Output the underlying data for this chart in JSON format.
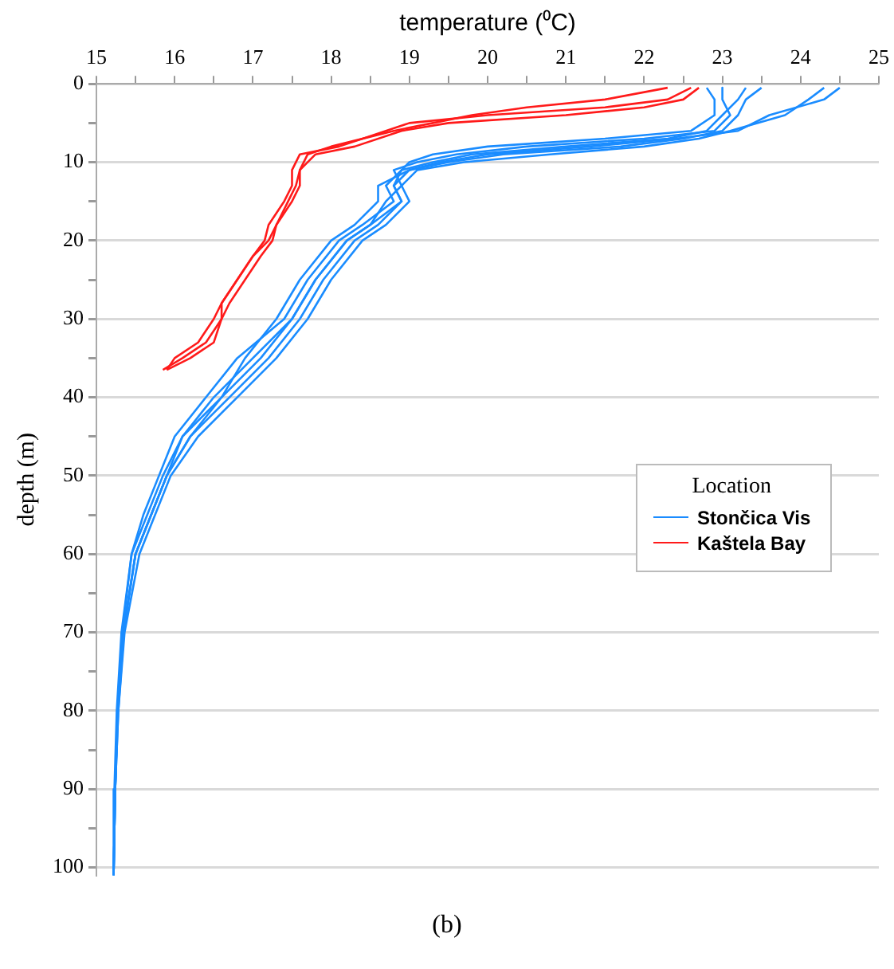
{
  "chart_data": {
    "type": "line",
    "xlabel": "temperature (⁰C)",
    "ylabel": "depth (m)",
    "legend_title": "Location",
    "legend": "right",
    "grid": "y",
    "marker": "none",
    "annotations": [
      "(b)"
    ],
    "xlim": [
      15,
      25
    ],
    "xticks": [
      15,
      {
        "value": 15.5,
        "label": null
      },
      16,
      {
        "value": 16.5,
        "label": null
      },
      17,
      {
        "value": 17.5,
        "label": null
      },
      18,
      {
        "value": 18.5,
        "label": null
      },
      19,
      {
        "value": 19.5,
        "label": null
      },
      20,
      {
        "value": 20.5,
        "label": null
      },
      21,
      {
        "value": 21.5,
        "label": null
      },
      22,
      {
        "value": 22.5,
        "label": null
      },
      23,
      {
        "value": 23.5,
        "label": null
      },
      24,
      {
        "value": 24.5,
        "label": null
      },
      25
    ],
    "ylim": [
      101,
      0
    ],
    "yticks": [
      0,
      {
        "value": 5,
        "label": null
      },
      10,
      {
        "value": 15,
        "label": null
      },
      20,
      {
        "value": 25,
        "label": null
      },
      30,
      {
        "value": 35,
        "label": null
      },
      40,
      {
        "value": 45,
        "label": null
      },
      50,
      {
        "value": 55,
        "label": null
      },
      60,
      {
        "value": 65,
        "label": null
      },
      70,
      {
        "value": 75,
        "label": null
      },
      80,
      {
        "value": 85,
        "label": null
      },
      90,
      {
        "value": 95,
        "label": null
      },
      100
    ],
    "series": [
      {
        "name": "Stončica Vis",
        "color": "#1a8cff",
        "x": [
          22.8,
          22.9,
          22.9,
          22.6,
          21.5,
          20.0,
          19.3,
          19.0,
          18.9,
          18.8,
          18.9,
          18.6,
          18.3,
          17.9,
          17.6,
          17.2,
          16.7,
          16.2,
          15.9,
          15.7,
          15.5,
          15.35,
          15.28,
          15.24,
          15.22
        ],
        "values": [
          0.5,
          2,
          4,
          6,
          7,
          8,
          9,
          10,
          11,
          13,
          15,
          18,
          20,
          25,
          30,
          35,
          40,
          45,
          50,
          55,
          60,
          70,
          80,
          90,
          101
        ]
      },
      {
        "color": "#1a8cff",
        "x": [
          23.0,
          23.0,
          23.1,
          22.9,
          22.0,
          20.5,
          19.6,
          19.1,
          18.8,
          18.9,
          18.7,
          18.5,
          18.2,
          17.8,
          17.5,
          17.0,
          16.5,
          16.1,
          15.85,
          15.65,
          15.45,
          15.33,
          15.27,
          15.24,
          15.22
        ],
        "values": [
          0.5,
          2,
          4,
          6,
          7,
          8,
          9,
          10,
          11,
          13,
          15,
          18,
          20,
          25,
          30,
          35,
          40,
          45,
          50,
          55,
          60,
          70,
          80,
          90,
          101
        ]
      },
      {
        "color": "#1a8cff",
        "x": [
          23.3,
          23.2,
          23.0,
          22.8,
          22.3,
          21.0,
          19.8,
          19.3,
          18.9,
          18.7,
          18.8,
          18.4,
          18.1,
          17.7,
          17.4,
          16.8,
          16.4,
          16.0,
          15.8,
          15.6,
          15.45,
          15.32,
          15.26,
          15.23,
          15.22
        ],
        "values": [
          0.5,
          2,
          4,
          6,
          7,
          8,
          9,
          10,
          11,
          13,
          15,
          18,
          20,
          25,
          30,
          35,
          40,
          45,
          50,
          55,
          60,
          70,
          80,
          90,
          101
        ]
      },
      {
        "color": "#1a8cff",
        "x": [
          23.5,
          23.3,
          23.2,
          23.0,
          22.5,
          21.7,
          20.2,
          19.5,
          19.0,
          18.6,
          18.6,
          18.3,
          18.0,
          17.6,
          17.3,
          16.9,
          16.6,
          16.1,
          15.9,
          15.7,
          15.5,
          15.34,
          15.27,
          15.24,
          15.22
        ],
        "values": [
          0.5,
          2,
          4,
          6,
          7,
          8,
          9,
          10,
          11,
          13,
          15,
          18,
          20,
          25,
          30,
          35,
          40,
          45,
          50,
          55,
          60,
          70,
          80,
          90,
          101
        ]
      },
      {
        "color": "#1a8cff",
        "x": [
          24.3,
          24.1,
          23.8,
          23.1,
          22.7,
          22.0,
          20.8,
          19.7,
          19.1,
          18.9,
          19.0,
          18.7,
          18.4,
          18.0,
          17.7,
          17.3,
          16.8,
          16.3,
          15.95,
          15.75,
          15.55,
          15.36,
          15.28,
          15.24,
          15.22
        ],
        "values": [
          0.5,
          2,
          4,
          6,
          7,
          8,
          9,
          10,
          11,
          13,
          15,
          18,
          20,
          25,
          30,
          35,
          40,
          45,
          50,
          55,
          60,
          70,
          80,
          90,
          101
        ]
      },
      {
        "color": "#1a8cff",
        "x": [
          24.5,
          24.3,
          23.6,
          23.2,
          22.4,
          21.3,
          20.0,
          19.4,
          19.0,
          18.8,
          18.9,
          18.5,
          18.2,
          17.8,
          17.5,
          17.1,
          16.6,
          16.2,
          15.9,
          15.7,
          15.5,
          15.34,
          15.27,
          15.24,
          15.22
        ],
        "values": [
          0.5,
          2,
          4,
          6,
          7,
          8,
          9,
          10,
          11,
          13,
          15,
          18,
          20,
          25,
          30,
          35,
          40,
          45,
          50,
          55,
          60,
          70,
          80,
          90,
          101
        ]
      },
      {
        "name": "Kaštela Bay",
        "color": "#ff1a1a",
        "x": [
          22.3,
          21.5,
          20.5,
          19.8,
          19.3,
          18.8,
          18.0,
          17.7,
          17.6,
          17.6,
          17.5,
          17.3,
          17.25,
          17.1,
          16.9,
          16.7,
          16.6,
          16.5,
          16.2,
          15.9
        ],
        "values": [
          0.5,
          2,
          3,
          4,
          5,
          6,
          8,
          9,
          11,
          13,
          15,
          18,
          20,
          22,
          25,
          28,
          30,
          33,
          35,
          36.5
        ]
      },
      {
        "color": "#ff1a1a",
        "x": [
          22.7,
          22.5,
          22.0,
          21.0,
          19.5,
          18.9,
          18.3,
          17.8,
          17.6,
          17.55,
          17.45,
          17.3,
          17.2,
          17.0,
          16.8,
          16.6,
          16.6,
          16.4,
          16.1,
          15.85
        ],
        "values": [
          0.5,
          2,
          3,
          4,
          5,
          6,
          8,
          9,
          11,
          13,
          15,
          18,
          20,
          22,
          25,
          28,
          30,
          33,
          35,
          36.5
        ]
      },
      {
        "color": "#ff1a1a",
        "x": [
          22.6,
          22.3,
          21.5,
          20.0,
          19.0,
          18.7,
          18.1,
          17.6,
          17.5,
          17.5,
          17.4,
          17.2,
          17.15,
          17.0,
          16.8,
          16.6,
          16.5,
          16.3,
          16.0,
          15.9
        ],
        "values": [
          0.5,
          2,
          3,
          4,
          5,
          6,
          8,
          9,
          11,
          13,
          15,
          18,
          20,
          22,
          25,
          28,
          30,
          33,
          35,
          36.5
        ]
      }
    ]
  }
}
